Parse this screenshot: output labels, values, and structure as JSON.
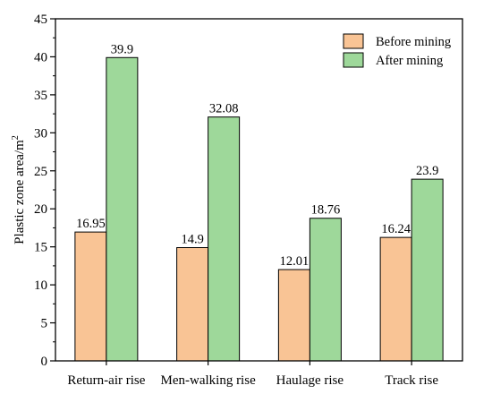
{
  "chart_data": {
    "type": "bar",
    "categories": [
      "Return-air rise",
      "Men-walking rise",
      "Haulage rise",
      "Track rise"
    ],
    "series": [
      {
        "name": "Before mining",
        "values": [
          16.95,
          14.9,
          12.01,
          16.24
        ],
        "labels": [
          "16.95",
          "14.9",
          "12.01",
          "16.24"
        ],
        "color": "#f9c495"
      },
      {
        "name": "After mining",
        "values": [
          39.9,
          32.08,
          18.76,
          23.9
        ],
        "labels": [
          "39.9",
          "32.08",
          "18.76",
          "23.9"
        ],
        "color": "#9ed89a"
      }
    ],
    "ylabel_main": "Plastic zone area/m",
    "ylabel_sup": "2",
    "xlabel": "",
    "ylim": [
      0,
      45
    ],
    "yticks": [
      "0",
      "5",
      "10",
      "15",
      "20",
      "25",
      "30",
      "35",
      "40",
      "45"
    ],
    "grid": false,
    "legend_position": "top-right"
  }
}
